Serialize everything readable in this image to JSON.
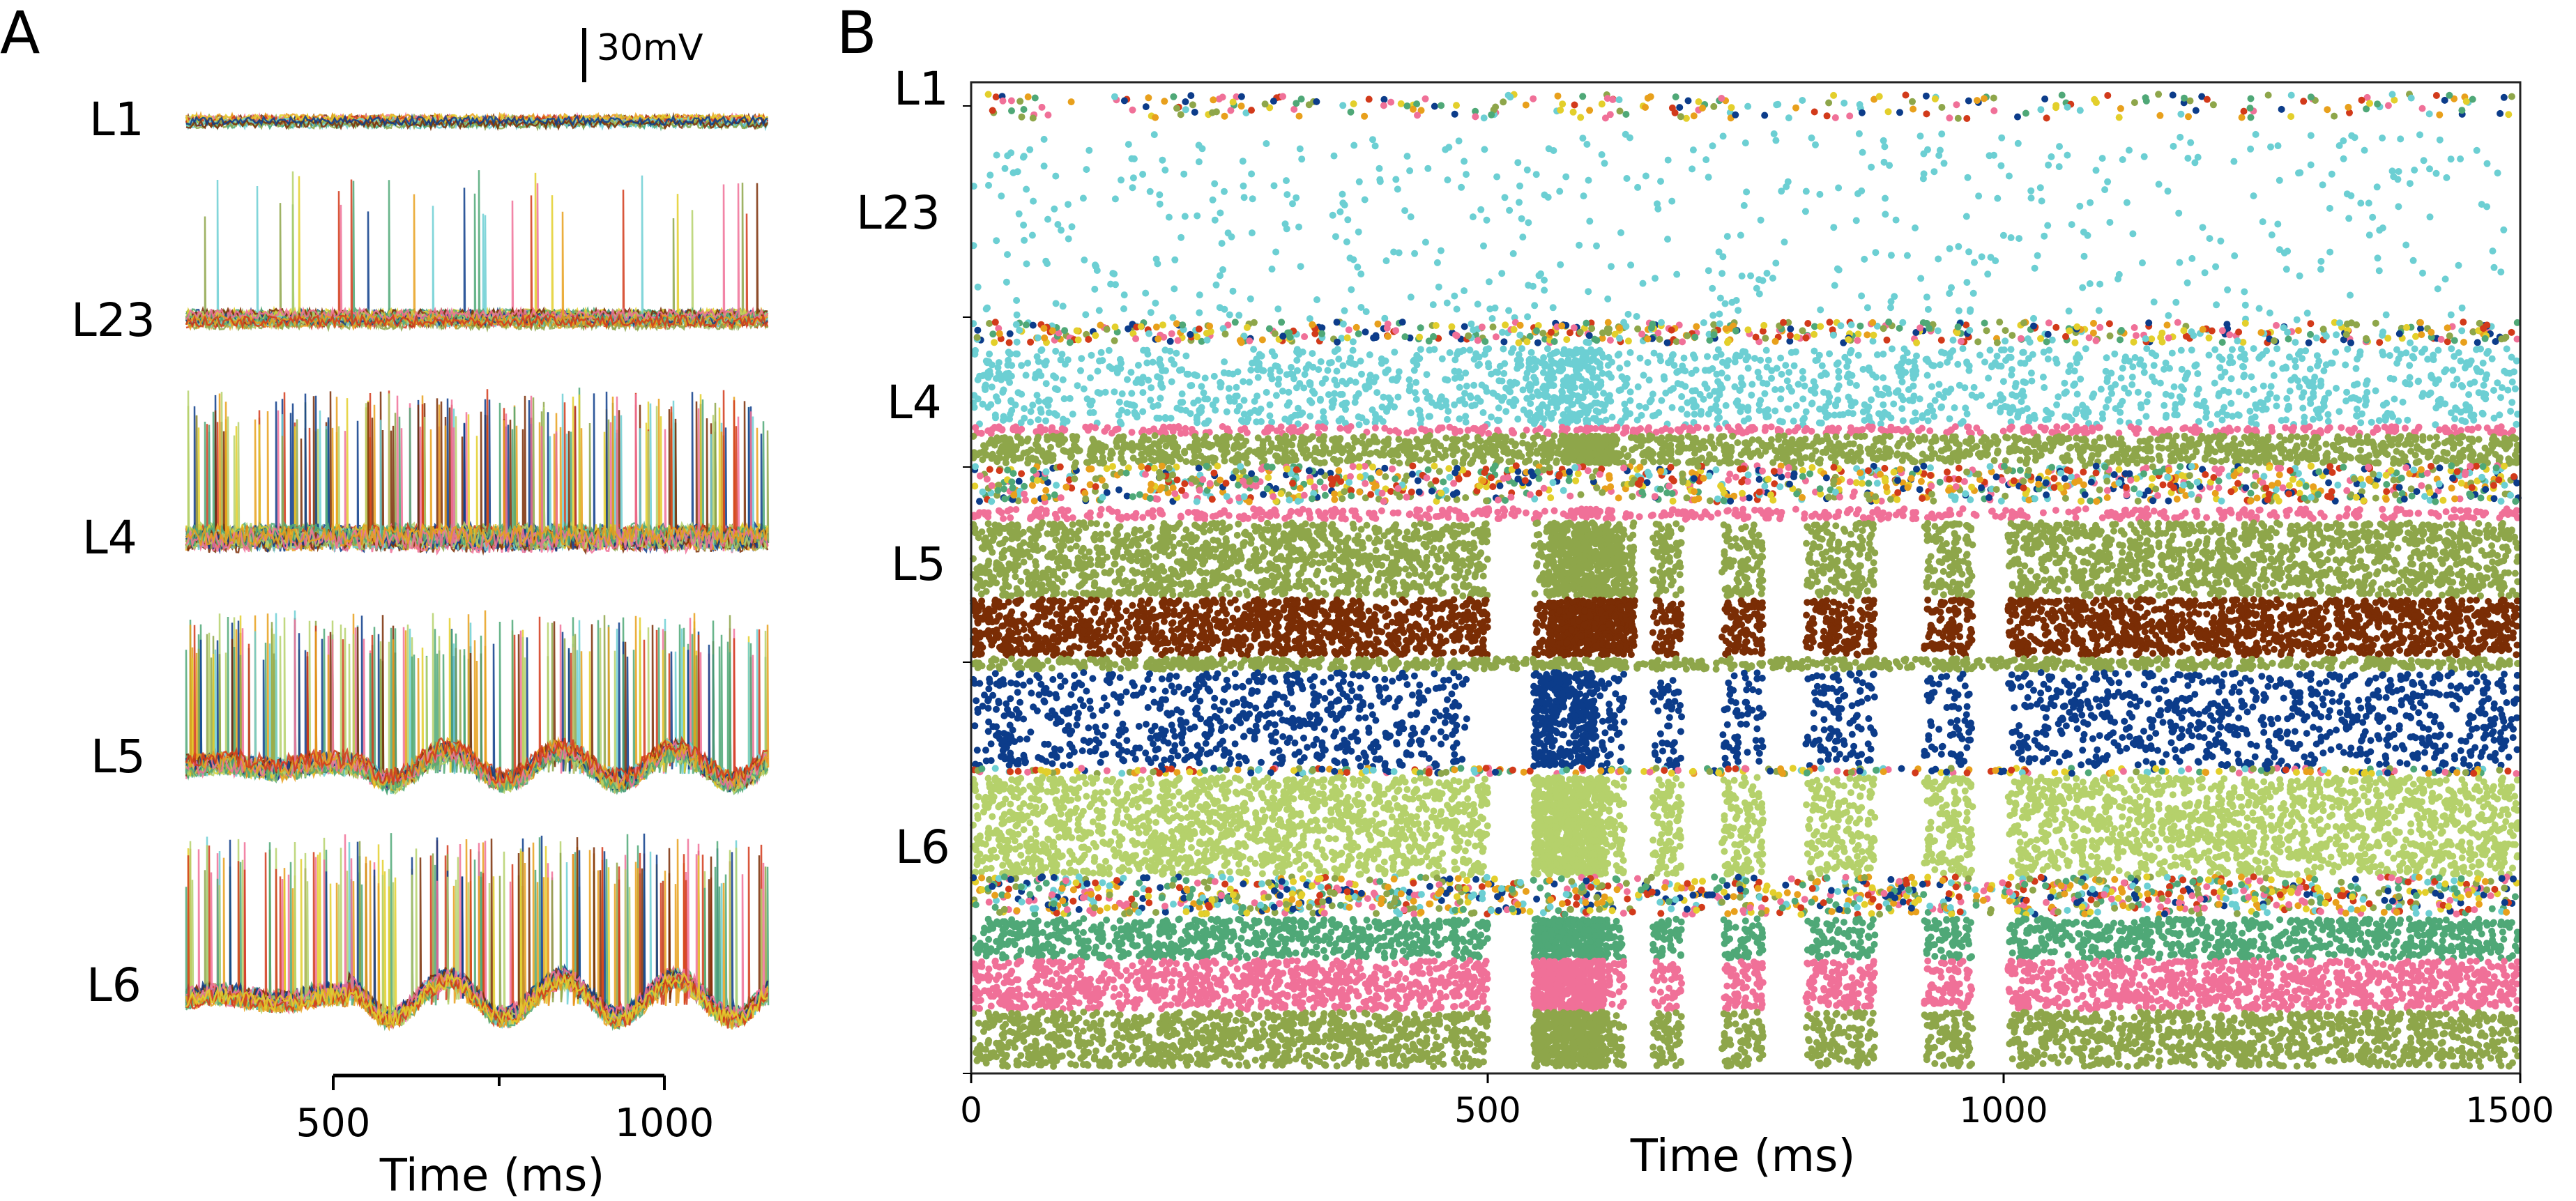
{
  "panel_a": {
    "letter": "A",
    "scale_bar_label": "30mV",
    "layers": [
      "L1",
      "L23",
      "L4",
      "L5",
      "L6"
    ],
    "xlabel": "Time (ms)",
    "x_ticks": [
      "500",
      "1000"
    ],
    "xlim": [
      250,
      1250
    ]
  },
  "panel_b": {
    "letter": "B",
    "layers": [
      "L1",
      "L23",
      "L4",
      "L5",
      "L6"
    ],
    "xlabel": "Time (ms)",
    "x_ticks": [
      "0",
      "500",
      "1000",
      "1500"
    ],
    "xlim": [
      0,
      1500
    ]
  },
  "colors": {
    "cyan": "#6ccfd3",
    "olive": "#8ea64a",
    "brown": "#7a2d05",
    "navy": "#0c3c8a",
    "lime": "#b5d16b",
    "green": "#4fa877",
    "pink": "#f07098",
    "orange": "#e8a01c",
    "red": "#d23a1a",
    "yellow": "#e3cf2b"
  },
  "chart_data": [
    {
      "type": "line",
      "panel": "A",
      "description_series": [
        "L1",
        "L23",
        "L4",
        "L5",
        "L6"
      ],
      "x": {
        "label": "Time (ms)",
        "ticks": [
          500,
          1000
        ],
        "range": [
          250,
          1250
        ]
      },
      "scale_bar": "30mV"
    },
    {
      "type": "scatter",
      "panel": "B",
      "x": {
        "label": "Time (ms)",
        "ticks": [
          0,
          500,
          1000,
          1500
        ],
        "range": [
          0,
          1500
        ]
      },
      "y_groups": [
        "L1",
        "L23",
        "L4",
        "L5",
        "L6"
      ]
    }
  ]
}
